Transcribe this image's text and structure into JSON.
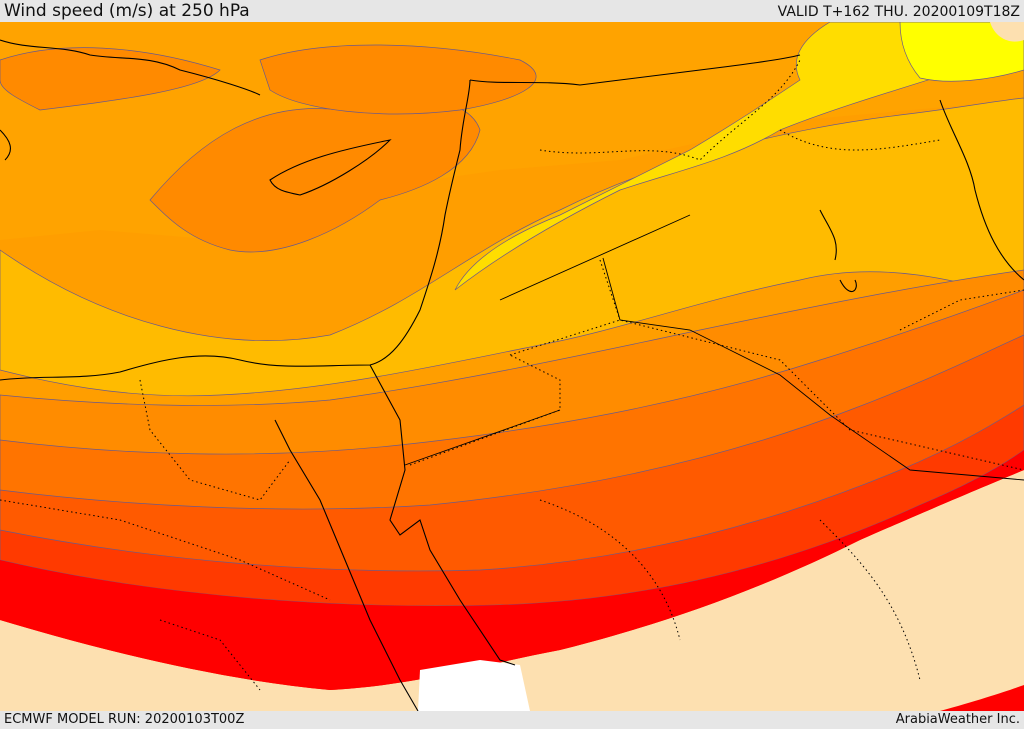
{
  "header": {
    "title": "Wind speed (m/s) at 250 hPa",
    "valid_time": "VALID T+162 THU. 20200109T18Z"
  },
  "footer": {
    "model_run": "ECMWF MODEL RUN: 20200103T00Z",
    "credit": "ArabiaWeather Inc."
  },
  "map": {
    "field": "wind speed 250 hPa",
    "color_scale": [
      "#fde0b0",
      "#ff0000",
      "#ff2a00",
      "#ff5500",
      "#ff7f00",
      "#ffa000",
      "#ffbb00",
      "#ffdd00",
      "#ffff00"
    ],
    "coastline_color": "#000000",
    "border_style": "dotted",
    "contour_color": "#6b5a8a"
  }
}
